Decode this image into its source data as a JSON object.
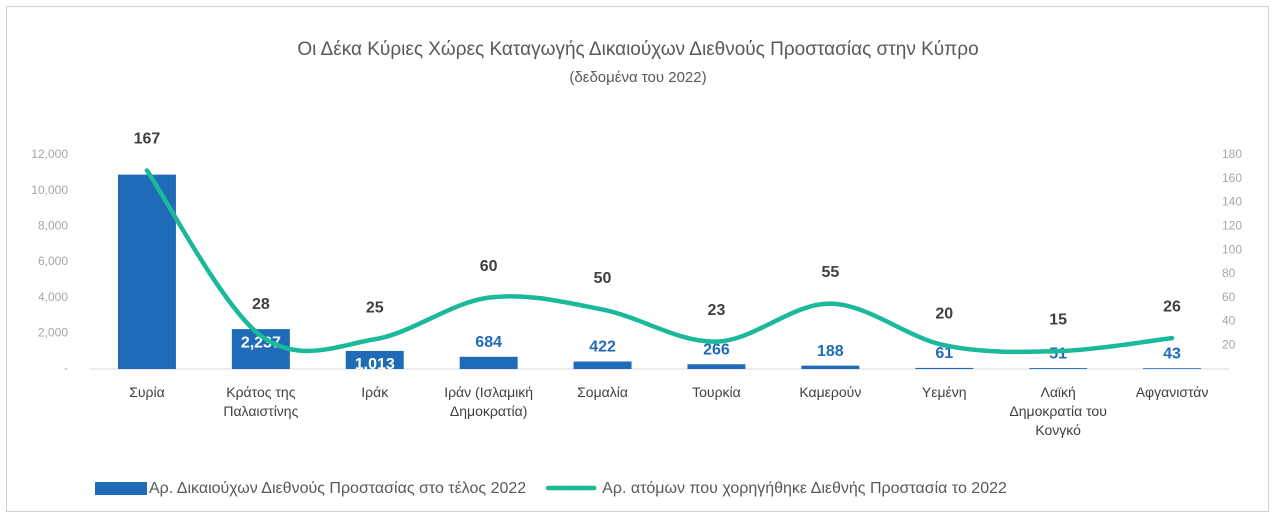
{
  "chart_data": {
    "type": "bar-line",
    "title": "Οι Δέκα Κύριες Χώρες Καταγωγής Δικαιούχων Διεθνούς Προστασίας στην Κύπρο",
    "subtitle": "(δεδομένα του 2022)",
    "categories": [
      "Συρία",
      "Κράτος της Παλαιστίνης",
      "Ιράκ",
      "Ιράν (Ισλαμική Δημοκρατία)",
      "Σομαλία",
      "Τουρκία",
      "Καμερούν",
      "Υεμένη",
      "Λαϊκή Δημοκρατία του Κονγκό",
      "Αφγανιστάν"
    ],
    "series": [
      {
        "name": "Αρ. Δικαιούχων Διεθνούς Προστασίας στο τέλος 2022",
        "color": "#1f6bb8",
        "type": "bar",
        "values": [
          10900,
          2237,
          1013,
          684,
          422,
          266,
          188,
          61,
          51,
          43
        ],
        "value_labels": [
          null,
          "2,237",
          "1,013",
          "684",
          "422",
          "266",
          "188",
          "61",
          "51",
          "43"
        ]
      },
      {
        "name": "Αρ. ατόμων που χορηγήθηκε Διεθνής Προστασία το 2022",
        "color": "#1ab99a",
        "type": "line",
        "axis": "y2",
        "values": [
          167,
          28,
          25,
          60,
          50,
          23,
          55,
          20,
          15,
          26
        ]
      }
    ],
    "ylim": [
      0,
      12000
    ],
    "yticks": [
      {
        "value": 0,
        "label": "-"
      },
      {
        "value": 2000,
        "label": "2,000"
      },
      {
        "value": 4000,
        "label": "4,000"
      },
      {
        "value": 6000,
        "label": "6,000"
      },
      {
        "value": 8000,
        "label": "8,000"
      },
      {
        "value": 10000,
        "label": "10,000"
      },
      {
        "value": 12000,
        "label": "12,000"
      }
    ],
    "y2lim": [
      0,
      180
    ],
    "y2ticks": [
      {
        "value": 0,
        "label": "-"
      },
      20,
      40,
      60,
      80,
      100,
      120,
      140,
      160,
      180
    ],
    "legend": "bottom"
  }
}
